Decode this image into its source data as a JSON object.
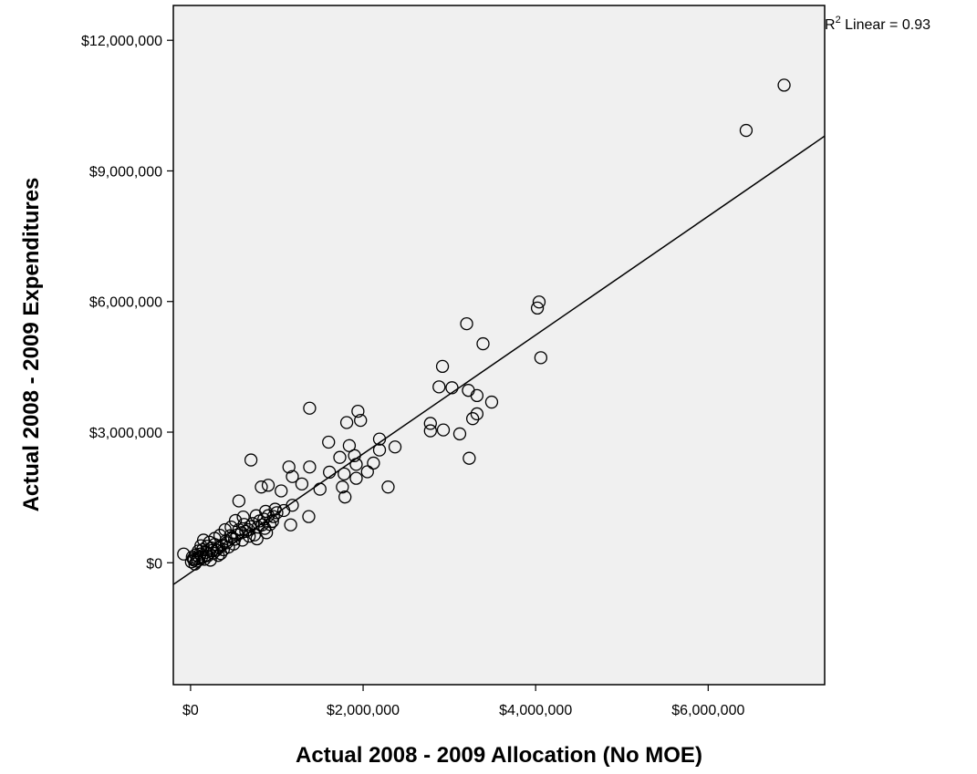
{
  "chart_data": {
    "type": "scatter",
    "xlabel": "Actual 2008 - 2009 Allocation (No MOE)",
    "ylabel": "Actual 2008 - 2009 Expenditures",
    "xlim": [
      -200000,
      7350000
    ],
    "ylim": [
      -2800000,
      12800000
    ],
    "x_ticks": [
      {
        "value": 0,
        "label": "$0"
      },
      {
        "value": 2000000,
        "label": "$2,000,000"
      },
      {
        "value": 4000000,
        "label": "$4,000,000"
      },
      {
        "value": 6000000,
        "label": "$6,000,000"
      }
    ],
    "y_ticks": [
      {
        "value": 0,
        "label": "$0"
      },
      {
        "value": 3000000,
        "label": "$3,000,000"
      },
      {
        "value": 6000000,
        "label": "$6,000,000"
      },
      {
        "value": 9000000,
        "label": "$9,000,000"
      },
      {
        "value": 12000000,
        "label": "$12,000,000"
      }
    ],
    "grid": false,
    "fit_line": {
      "label_prefix": "R",
      "label_sup": "2",
      "label_suffix": " Linear = 0.93",
      "points": [
        [
          -200000,
          -500000
        ],
        [
          7350000,
          9800000
        ]
      ]
    },
    "series": [
      {
        "marker": "open-circle",
        "points": [
          [
            6880000,
            10970000
          ],
          [
            6440000,
            9930000
          ],
          [
            4040000,
            5990000
          ],
          [
            4020000,
            5850000
          ],
          [
            4060000,
            4710000
          ],
          [
            3200000,
            5490000
          ],
          [
            3390000,
            5030000
          ],
          [
            2920000,
            4510000
          ],
          [
            2880000,
            4040000
          ],
          [
            3030000,
            4020000
          ],
          [
            3220000,
            3960000
          ],
          [
            3320000,
            3840000
          ],
          [
            3490000,
            3690000
          ],
          [
            3320000,
            3420000
          ],
          [
            3270000,
            3310000
          ],
          [
            2780000,
            3200000
          ],
          [
            2780000,
            3030000
          ],
          [
            2930000,
            3050000
          ],
          [
            3120000,
            2960000
          ],
          [
            3230000,
            2400000
          ],
          [
            1380000,
            3550000
          ],
          [
            1940000,
            3480000
          ],
          [
            1970000,
            3270000
          ],
          [
            1810000,
            3220000
          ],
          [
            1600000,
            2770000
          ],
          [
            2190000,
            2840000
          ],
          [
            2190000,
            2590000
          ],
          [
            2370000,
            2660000
          ],
          [
            1840000,
            2690000
          ],
          [
            1900000,
            2460000
          ],
          [
            1730000,
            2420000
          ],
          [
            1920000,
            2260000
          ],
          [
            2050000,
            2090000
          ],
          [
            2120000,
            2290000
          ],
          [
            1780000,
            2040000
          ],
          [
            1920000,
            1940000
          ],
          [
            1760000,
            1740000
          ],
          [
            1790000,
            1510000
          ],
          [
            2290000,
            1740000
          ],
          [
            1610000,
            2080000
          ],
          [
            1380000,
            2200000
          ],
          [
            1140000,
            2200000
          ],
          [
            700000,
            2360000
          ],
          [
            1180000,
            1980000
          ],
          [
            1500000,
            1690000
          ],
          [
            1290000,
            1810000
          ],
          [
            1050000,
            1650000
          ],
          [
            900000,
            1780000
          ],
          [
            820000,
            1740000
          ],
          [
            1180000,
            1320000
          ],
          [
            1370000,
            1060000
          ],
          [
            1160000,
            870000
          ],
          [
            560000,
            1420000
          ],
          [
            980000,
            1230000
          ],
          [
            870000,
            1180000
          ],
          [
            760000,
            1080000
          ],
          [
            950000,
            950000
          ],
          [
            830000,
            870000
          ],
          [
            880000,
            690000
          ],
          [
            770000,
            550000
          ],
          [
            690000,
            830000
          ],
          [
            610000,
            1050000
          ],
          [
            520000,
            970000
          ],
          [
            470000,
            820000
          ],
          [
            400000,
            760000
          ],
          [
            340000,
            630000
          ],
          [
            280000,
            560000
          ],
          [
            220000,
            470000
          ],
          [
            150000,
            520000
          ],
          [
            120000,
            390000
          ],
          [
            90000,
            270000
          ],
          [
            60000,
            180000
          ],
          [
            30000,
            90000
          ],
          [
            10000,
            20000
          ],
          [
            50000,
            -30000
          ],
          [
            -80000,
            200000
          ],
          [
            180000,
            240000
          ],
          [
            240000,
            340000
          ],
          [
            300000,
            290000
          ],
          [
            360000,
            400000
          ],
          [
            420000,
            460000
          ],
          [
            480000,
            580000
          ],
          [
            540000,
            640000
          ],
          [
            640000,
            720000
          ],
          [
            720000,
            900000
          ],
          [
            800000,
            960000
          ],
          [
            900000,
            1080000
          ],
          [
            1000000,
            1150000
          ],
          [
            1080000,
            1200000
          ],
          [
            200000,
            160000
          ],
          [
            260000,
            220000
          ],
          [
            320000,
            170000
          ],
          [
            160000,
            80000
          ],
          [
            100000,
            120000
          ],
          [
            70000,
            40000
          ],
          [
            380000,
            300000
          ],
          [
            440000,
            360000
          ],
          [
            500000,
            430000
          ],
          [
            600000,
            520000
          ],
          [
            680000,
            610000
          ],
          [
            350000,
            210000
          ],
          [
            230000,
            60000
          ],
          [
            140000,
            300000
          ],
          [
            280000,
            420000
          ],
          [
            560000,
            760000
          ],
          [
            740000,
            640000
          ],
          [
            860000,
            790000
          ],
          [
            920000,
            880000
          ],
          [
            620000,
            880000
          ],
          [
            460000,
            620000
          ],
          [
            190000,
            380000
          ],
          [
            110000,
            200000
          ],
          [
            40000,
            60000
          ],
          [
            20000,
            130000
          ],
          [
            80000,
            90000
          ],
          [
            130000,
            140000
          ],
          [
            250000,
            280000
          ],
          [
            330000,
            350000
          ],
          [
            410000,
            500000
          ],
          [
            510000,
            540000
          ],
          [
            590000,
            690000
          ],
          [
            670000,
            760000
          ],
          [
            780000,
            820000
          ],
          [
            850000,
            1000000
          ],
          [
            960000,
            1060000
          ]
        ]
      }
    ]
  }
}
